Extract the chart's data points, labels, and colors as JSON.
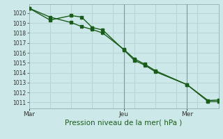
{
  "xlabel": "Pression niveau de la mer( hPa )",
  "bg_color": "#cce8e8",
  "grid_color": "#b8d4d4",
  "line_color": "#1a5c1a",
  "yticks": [
    1011,
    1012,
    1013,
    1014,
    1015,
    1016,
    1017,
    1018,
    1019,
    1020
  ],
  "ylim": [
    1010.4,
    1020.9
  ],
  "xlim": [
    0,
    9.0
  ],
  "xtick_positions": [
    0.0,
    4.5,
    7.5
  ],
  "xtick_labels": [
    "Mar",
    "Jeu",
    "Mer"
  ],
  "vlines": [
    4.5,
    7.5
  ],
  "vgrid_x": [
    0,
    1,
    2,
    3,
    4,
    5,
    6,
    7,
    8,
    9
  ],
  "series1_x": [
    0,
    1.0,
    2.0,
    2.5,
    3.0,
    3.5,
    4.5,
    5.0,
    5.5,
    6.0,
    7.5,
    8.5,
    9.0
  ],
  "series1_y": [
    1020.5,
    1019.3,
    1019.75,
    1019.6,
    1018.55,
    1018.3,
    1016.3,
    1015.25,
    1014.75,
    1014.1,
    1012.8,
    1011.1,
    1011.1
  ],
  "series2_x": [
    0,
    1.0,
    2.0,
    2.5,
    3.0,
    3.5,
    4.5,
    5.0,
    5.5,
    6.0,
    7.5,
    8.5,
    9.0
  ],
  "series2_y": [
    1020.5,
    1019.6,
    1019.05,
    1018.65,
    1018.35,
    1018.0,
    1016.35,
    1015.4,
    1014.85,
    1014.2,
    1012.8,
    1011.2,
    1011.25
  ],
  "marker_size": 2.5,
  "line_width": 1.0,
  "ytick_fontsize": 5.5,
  "xtick_fontsize": 6.5,
  "xlabel_fontsize": 7.5
}
